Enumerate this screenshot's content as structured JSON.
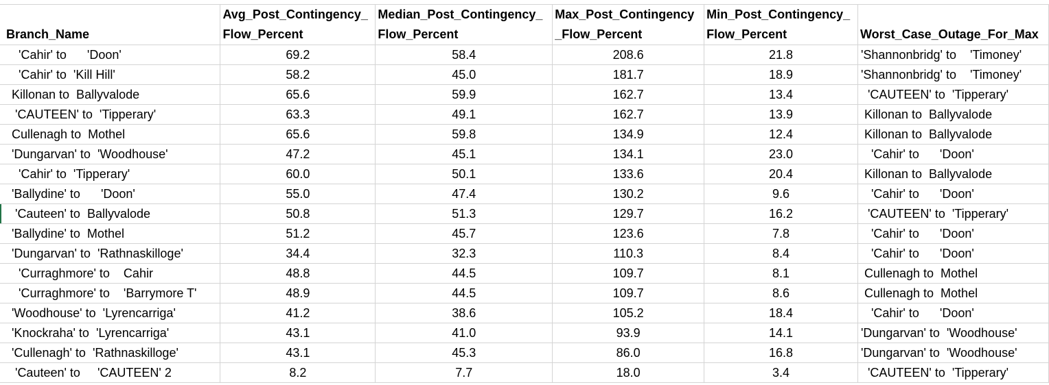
{
  "spreadsheet": {
    "headers": [
      "Branch_Name",
      "Avg_Post_Contingency_\nFlow_Percent",
      "Median_Post_Contingency_\nFlow_Percent",
      "Max_Post_Contingency\n_Flow_Percent",
      "Min_Post_Contingency_\nFlow_Percent",
      "Worst_Case_Outage_For_Max"
    ],
    "rows": [
      [
        "  'Cahir' to      'Doon'",
        "69.2",
        "58.4",
        "208.6",
        "21.8",
        "'Shannonbridg' to    'Timoney'"
      ],
      [
        "  'Cahir' to  'Kill Hill'",
        "58.2",
        "45.0",
        "181.7",
        "18.9",
        "'Shannonbridg' to    'Timoney'"
      ],
      [
        "Killonan to  Ballyvalode",
        "65.6",
        "59.9",
        "162.7",
        "13.4",
        "  'CAUTEEN' to  'Tipperary'"
      ],
      [
        " 'CAUTEEN' to  'Tipperary'",
        "63.3",
        "49.1",
        "162.7",
        "13.9",
        " Killonan to  Ballyvalode"
      ],
      [
        "Cullenagh to  Mothel",
        "65.6",
        "59.8",
        "134.9",
        "12.4",
        " Killonan to  Ballyvalode"
      ],
      [
        "'Dungarvan' to  'Woodhouse'",
        "47.2",
        "45.1",
        "134.1",
        "23.0",
        "   'Cahir' to      'Doon'"
      ],
      [
        "  'Cahir' to  'Tipperary'",
        "60.0",
        "50.1",
        "133.6",
        "20.4",
        " Killonan to  Ballyvalode"
      ],
      [
        "'Ballydine' to      'Doon'",
        "55.0",
        "47.4",
        "130.2",
        "9.6",
        "   'Cahir' to      'Doon'"
      ],
      [
        " 'Cauteen' to  Ballyvalode",
        "50.8",
        "51.3",
        "129.7",
        "16.2",
        "  'CAUTEEN' to  'Tipperary'"
      ],
      [
        "'Ballydine' to  Mothel",
        "51.2",
        "45.7",
        "123.6",
        "7.8",
        "   'Cahir' to      'Doon'"
      ],
      [
        "'Dungarvan' to  'Rathnaskilloge'",
        "34.4",
        "32.3",
        "110.3",
        "8.4",
        "   'Cahir' to      'Doon'"
      ],
      [
        "  'Curraghmore' to    Cahir",
        "48.8",
        "44.5",
        "109.7",
        "8.1",
        " Cullenagh to  Mothel"
      ],
      [
        "  'Curraghmore' to    'Barrymore T'",
        "48.9",
        "44.5",
        "109.7",
        "8.6",
        " Cullenagh to  Mothel"
      ],
      [
        "'Woodhouse' to  'Lyrencarriga'",
        "41.2",
        "38.6",
        "105.2",
        "18.4",
        "   'Cahir' to      'Doon'"
      ],
      [
        "'Knockraha' to  'Lyrencarriga'",
        "43.1",
        "41.0",
        "93.9",
        "14.1",
        "'Dungarvan' to  'Woodhouse'"
      ],
      [
        "'Cullenagh' to  'Rathnaskilloge'",
        "43.1",
        "45.3",
        "86.0",
        "16.8",
        "'Dungarvan' to  'Woodhouse'"
      ],
      [
        " 'Cauteen' to     'CAUTEEN' 2",
        "8.2",
        "7.7",
        "18.0",
        "3.4",
        "  'CAUTEEN' to  'Tipperary'"
      ]
    ]
  }
}
